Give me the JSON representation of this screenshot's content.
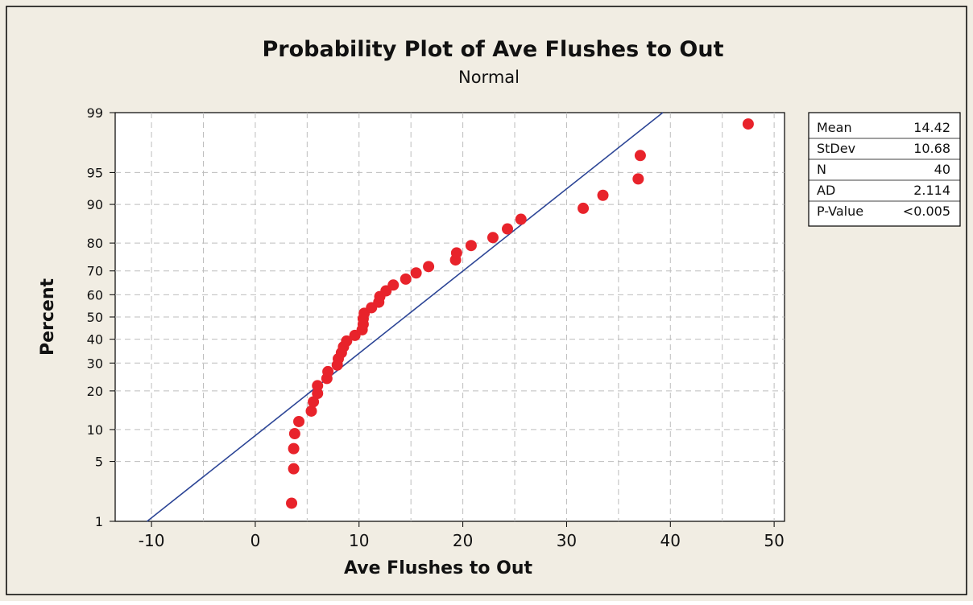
{
  "chart_data": {
    "type": "scatter",
    "title": "Probability Plot of Ave Flushes to Out",
    "subtitle": "Normal",
    "xlabel": "Ave Flushes to Out",
    "ylabel": "Percent",
    "xlim": [
      -13.5,
      51
    ],
    "ylim": [
      1,
      99
    ],
    "y_scale": "normal-probability",
    "xticks": [
      -10,
      0,
      10,
      20,
      30,
      40,
      50
    ],
    "xticklabels": [
      "-10",
      "0",
      "10",
      "20",
      "30",
      "40",
      "50"
    ],
    "xminor": [
      -5,
      5,
      15,
      25,
      35,
      45
    ],
    "yticks": [
      1,
      5,
      10,
      20,
      30,
      40,
      50,
      60,
      70,
      80,
      90,
      95,
      99
    ],
    "yticklabels": [
      "1",
      "5",
      "10",
      "20",
      "30",
      "40",
      "50",
      "60",
      "70",
      "80",
      "90",
      "95",
      "99"
    ],
    "grid": true,
    "fit_line": {
      "mean": 14.42,
      "stdev": 10.68
    },
    "points": [
      {
        "x": 3.5,
        "y": 1.7
      },
      {
        "x": 3.7,
        "y": 4.2
      },
      {
        "x": 3.7,
        "y": 6.7
      },
      {
        "x": 3.8,
        "y": 9.2
      },
      {
        "x": 4.2,
        "y": 11.7
      },
      {
        "x": 5.4,
        "y": 14.2
      },
      {
        "x": 5.6,
        "y": 16.7
      },
      {
        "x": 6.0,
        "y": 19.2
      },
      {
        "x": 6.0,
        "y": 21.7
      },
      {
        "x": 6.9,
        "y": 24.2
      },
      {
        "x": 7.0,
        "y": 26.7
      },
      {
        "x": 7.9,
        "y": 29.2
      },
      {
        "x": 8.0,
        "y": 31.7
      },
      {
        "x": 8.3,
        "y": 34.2
      },
      {
        "x": 8.5,
        "y": 36.7
      },
      {
        "x": 8.8,
        "y": 39.2
      },
      {
        "x": 9.6,
        "y": 41.7
      },
      {
        "x": 10.3,
        "y": 44.2
      },
      {
        "x": 10.4,
        "y": 46.7
      },
      {
        "x": 10.4,
        "y": 49.2
      },
      {
        "x": 10.5,
        "y": 51.7
      },
      {
        "x": 11.2,
        "y": 54.2
      },
      {
        "x": 11.9,
        "y": 56.7
      },
      {
        "x": 12.0,
        "y": 59.2
      },
      {
        "x": 12.6,
        "y": 61.7
      },
      {
        "x": 13.3,
        "y": 64.2
      },
      {
        "x": 14.5,
        "y": 66.7
      },
      {
        "x": 15.5,
        "y": 69.2
      },
      {
        "x": 16.7,
        "y": 71.7
      },
      {
        "x": 19.3,
        "y": 74.2
      },
      {
        "x": 19.4,
        "y": 76.7
      },
      {
        "x": 20.8,
        "y": 79.2
      },
      {
        "x": 22.9,
        "y": 81.7
      },
      {
        "x": 24.3,
        "y": 84.2
      },
      {
        "x": 25.6,
        "y": 86.7
      },
      {
        "x": 31.6,
        "y": 89.2
      },
      {
        "x": 33.5,
        "y": 91.7
      },
      {
        "x": 36.9,
        "y": 94.2
      },
      {
        "x": 37.1,
        "y": 96.7
      },
      {
        "x": 47.5,
        "y": 98.6
      }
    ],
    "stats": [
      {
        "label": "Mean",
        "value": "14.42"
      },
      {
        "label": "StDev",
        "value": "10.68"
      },
      {
        "label": "N",
        "value": "40"
      },
      {
        "label": "AD",
        "value": "2.114"
      },
      {
        "label": "P-Value",
        "value": "<0.005"
      }
    ],
    "colors": {
      "background": "#f1ede3",
      "plot_area": "#ffffff",
      "points": "#e8232b",
      "fit_line": "#2c4596",
      "grid": "#bdbdbd",
      "border": "#000000"
    }
  }
}
